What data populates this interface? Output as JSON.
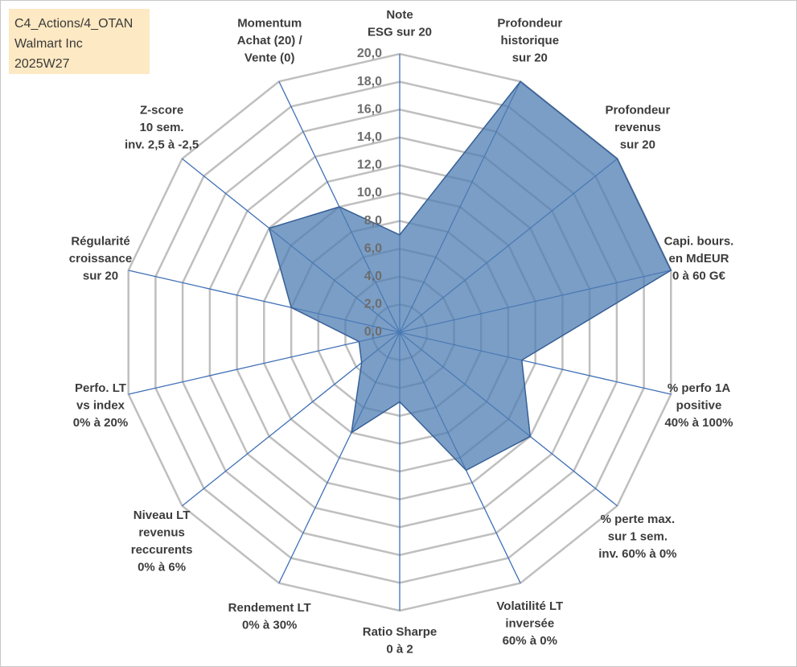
{
  "info_box": {
    "line1": "C4_Actions/4_OTAN",
    "line2": "Walmart Inc",
    "line3": "2025W27"
  },
  "chart_data": {
    "type": "radar",
    "title": "",
    "rlim": [
      0,
      20
    ],
    "r_ticks": [
      "0,0",
      "2,0",
      "4,0",
      "6,0",
      "8,0",
      "10,0",
      "12,0",
      "14,0",
      "16,0",
      "18,0",
      "20,0"
    ],
    "grid": true,
    "categories": [
      [
        "Note",
        "ESG sur 20"
      ],
      [
        "Profondeur",
        "historique",
        "sur 20"
      ],
      [
        "Profondeur",
        "revenus",
        "sur 20"
      ],
      [
        "Capi. bours.",
        "en MdEUR",
        "0 à 60 G€"
      ],
      [
        "% perfo 1A",
        "positive",
        "40% à 100%"
      ],
      [
        "% perte max.",
        "sur 1 sem.",
        "inv. 60% à 0%"
      ],
      [
        "Volatilité LT",
        "inversée",
        "60% à 0%"
      ],
      [
        "Ratio Sharpe",
        "0 à 2"
      ],
      [
        "Rendement LT",
        "0% à 30%"
      ],
      [
        "Niveau LT",
        "revenus",
        "reccurents",
        "0% à 6%"
      ],
      [
        "Perfo. LT",
        "vs index",
        "0% à 20%"
      ],
      [
        "Régularité",
        "croissance",
        "sur 20"
      ],
      [
        "Z-score",
        "10 sem.",
        "inv. 2,5 à -2,5"
      ],
      [
        "Momentum",
        "Achat (20) /",
        "Vente (0)"
      ]
    ],
    "series": [
      {
        "values": [
          7.0,
          20.0,
          20.0,
          20.0,
          9.0,
          12.0,
          11.0,
          5.0,
          8.0,
          3.5,
          3.0,
          8.0,
          12.0,
          10.0
        ],
        "color": "#4f7db3"
      }
    ]
  }
}
